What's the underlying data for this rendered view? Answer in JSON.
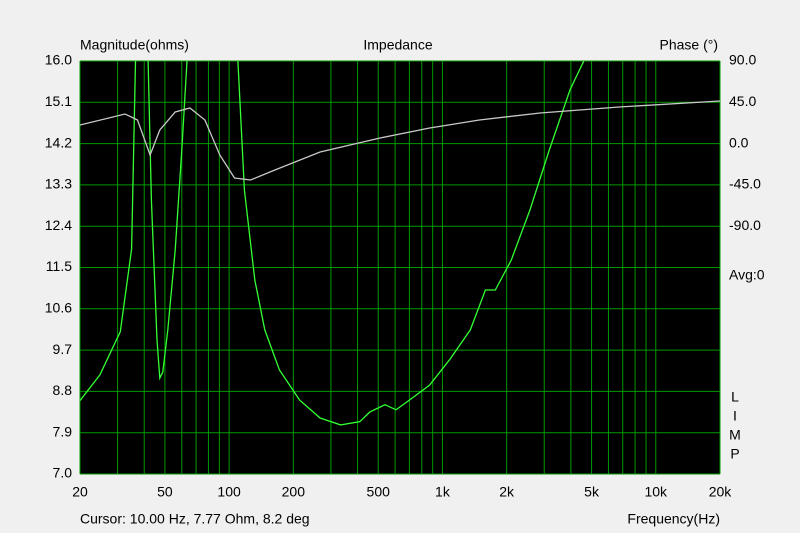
{
  "chart_data": {
    "type": "line",
    "title": "Impedance",
    "y_label": "Magnitude(ohms)",
    "y2_label": "Phase (°)",
    "x_label": "Frequency(Hz)",
    "cursor": "Cursor: 10.00 Hz, 7.77 Ohm, 8.2 deg",
    "avg_label": "Avg:0",
    "side_label": [
      "L",
      "I",
      "M",
      "P"
    ],
    "log_x": true,
    "grid": true,
    "background": "#000000",
    "grid_color": "#009a00",
    "xlim": [
      20,
      20000
    ],
    "xticks": [
      20,
      50,
      100,
      200,
      500,
      {
        "value": 1000,
        "label": "1k"
      },
      {
        "value": 2000,
        "label": "2k"
      },
      {
        "value": 5000,
        "label": "5k"
      },
      {
        "value": 10000,
        "label": "10k"
      },
      {
        "value": 20000,
        "label": "20k"
      }
    ],
    "x_grid": [
      20,
      30,
      40,
      50,
      60,
      70,
      80,
      90,
      100,
      200,
      300,
      400,
      500,
      600,
      700,
      800,
      900,
      1000,
      2000,
      3000,
      4000,
      5000,
      6000,
      7000,
      8000,
      9000,
      10000,
      20000
    ],
    "ylim": [
      7,
      16
    ],
    "yticks": [
      {
        "value": 7,
        "label": "7.0"
      },
      7.9,
      8.8,
      9.7,
      10.6,
      11.5,
      12.4,
      13.3,
      14.2,
      15.1,
      {
        "value": 16,
        "label": "16.0"
      }
    ],
    "y2lim": [
      -360,
      90
    ],
    "y2ticks": [
      {
        "value": -90,
        "label": "-90.0"
      },
      {
        "value": -45,
        "label": "-45.0"
      },
      {
        "value": 0,
        "label": "0.0"
      },
      {
        "value": 45,
        "label": "45.0"
      },
      {
        "value": 90,
        "label": "90.0"
      }
    ],
    "series": [
      {
        "name": "Magnitude",
        "color": "#33ff33",
        "x": [
          20,
          24.8,
          30.9,
          34.9,
          36.4,
          40,
          41.7,
          43.2,
          45.9,
          47.3,
          48.9,
          51.6,
          55.9,
          60,
          63.5,
          85,
          110,
          118,
          132,
          147,
          172,
          214,
          267,
          333,
          410,
          456,
          538,
          606,
          700,
          871,
          1080,
          1350,
          1590,
          1770,
          2100,
          2570,
          3170,
          3960,
          4600
        ],
        "values": [
          8.6,
          9.16,
          10.1,
          11.9,
          16,
          null,
          16,
          12.97,
          9.92,
          9.09,
          9.22,
          10.14,
          11.88,
          14.06,
          16,
          null,
          16,
          13.19,
          11.23,
          10.14,
          9.27,
          8.61,
          8.22,
          8.07,
          8.14,
          8.35,
          8.51,
          8.4,
          8.61,
          8.94,
          9.49,
          10.14,
          11.01,
          11.01,
          11.66,
          12.75,
          14.06,
          15.37,
          16
        ]
      },
      {
        "name": "Phase",
        "color": "#c8c8c8",
        "axis": "y2",
        "x": [
          20,
          32.5,
          37.2,
          42.6,
          47.3,
          55.9,
          65.5,
          77,
          90.4,
          106,
          126,
          164,
          267,
          510,
          871,
          1490,
          2870,
          6740,
          20000
        ],
        "values": [
          20.3,
          32.3,
          25.7,
          -12.4,
          14.8,
          34.4,
          38.8,
          25.7,
          -12.4,
          -37.5,
          -39.7,
          -28.8,
          -9.2,
          6.1,
          17,
          25.7,
          33.3,
          39.9,
          46.4
        ]
      }
    ]
  }
}
